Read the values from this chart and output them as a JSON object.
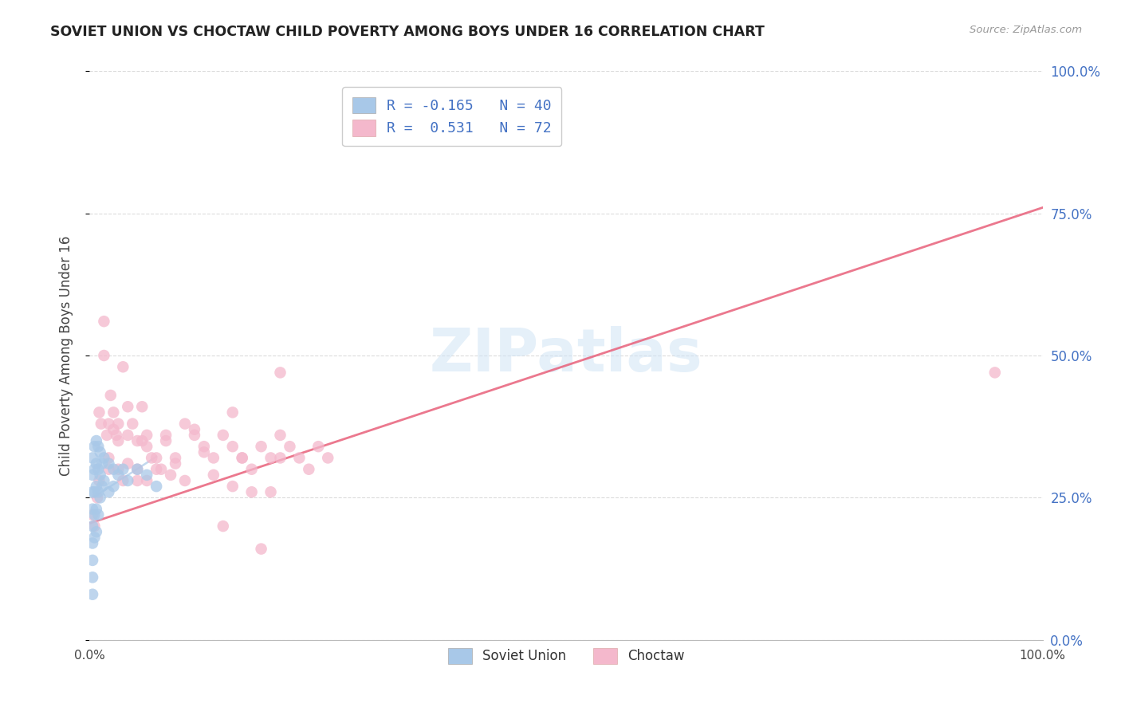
{
  "title": "SOVIET UNION VS CHOCTAW CHILD POVERTY AMONG BOYS UNDER 16 CORRELATION CHART",
  "source": "Source: ZipAtlas.com",
  "ylabel": "Child Poverty Among Boys Under 16",
  "watermark": "ZIPatlas",
  "background_color": "#ffffff",
  "plot_bg_color": "#ffffff",
  "grid_color": "#cccccc",
  "ytick_labels": [
    "0.0%",
    "25.0%",
    "50.0%",
    "75.0%",
    "100.0%"
  ],
  "ytick_values": [
    0,
    25,
    50,
    75,
    100
  ],
  "xlim": [
    0,
    100
  ],
  "ylim": [
    0,
    100
  ],
  "soviet_color": "#a8c8e8",
  "choctaw_color": "#f4b8cc",
  "choctaw_line_color": "#e8607a",
  "soviet_line_color": "#a8c8e8",
  "legend_soviet_label": "R = -0.165   N = 40",
  "legend_choctaw_label": "R =  0.531   N = 72",
  "choctaw_line_x0": 0,
  "choctaw_line_y0": 20.5,
  "choctaw_line_x1": 100,
  "choctaw_line_y1": 76.0,
  "soviet_x": [
    0.3,
    0.3,
    0.3,
    0.3,
    0.3,
    0.3,
    0.3,
    0.3,
    0.3,
    0.5,
    0.5,
    0.5,
    0.5,
    0.5,
    0.7,
    0.7,
    0.7,
    0.7,
    0.7,
    0.9,
    0.9,
    0.9,
    0.9,
    1.1,
    1.1,
    1.1,
    1.3,
    1.3,
    1.5,
    1.5,
    2.0,
    2.0,
    2.5,
    2.5,
    3.0,
    3.5,
    4.0,
    5.0,
    6.0,
    7.0
  ],
  "soviet_y": [
    32,
    29,
    26,
    23,
    20,
    17,
    14,
    11,
    8,
    34,
    30,
    26,
    22,
    18,
    35,
    31,
    27,
    23,
    19,
    34,
    30,
    26,
    22,
    33,
    29,
    25,
    31,
    27,
    32,
    28,
    31,
    26,
    30,
    27,
    29,
    30,
    28,
    30,
    29,
    27
  ],
  "choctaw_x": [
    0.3,
    0.5,
    0.8,
    1.0,
    1.2,
    1.5,
    1.5,
    1.8,
    2.0,
    2.0,
    2.2,
    2.5,
    2.5,
    2.8,
    3.0,
    3.0,
    3.5,
    3.5,
    4.0,
    4.0,
    4.5,
    5.0,
    5.0,
    5.5,
    5.5,
    6.0,
    6.0,
    6.5,
    7.0,
    7.5,
    8.0,
    8.5,
    9.0,
    10.0,
    11.0,
    12.0,
    13.0,
    14.0,
    15.0,
    15.0,
    16.0,
    17.0,
    18.0,
    19.0,
    20.0,
    20.0,
    1.0,
    2.0,
    3.0,
    4.0,
    5.0,
    6.0,
    7.0,
    8.0,
    9.0,
    10.0,
    11.0,
    12.0,
    13.0,
    14.0,
    15.0,
    16.0,
    17.0,
    18.0,
    19.0,
    20.0,
    21.0,
    22.0,
    23.0,
    24.0,
    25.0,
    95.0
  ],
  "choctaw_y": [
    22,
    20,
    25,
    40,
    38,
    56,
    50,
    36,
    38,
    32,
    43,
    40,
    37,
    36,
    38,
    30,
    48,
    28,
    41,
    36,
    38,
    35,
    28,
    41,
    35,
    36,
    28,
    32,
    30,
    30,
    35,
    29,
    32,
    28,
    37,
    33,
    29,
    20,
    27,
    40,
    32,
    26,
    16,
    26,
    47,
    32,
    28,
    30,
    35,
    31,
    30,
    34,
    32,
    36,
    31,
    38,
    36,
    34,
    32,
    36,
    34,
    32,
    30,
    34,
    32,
    36,
    34,
    32,
    30,
    34,
    32,
    47
  ]
}
